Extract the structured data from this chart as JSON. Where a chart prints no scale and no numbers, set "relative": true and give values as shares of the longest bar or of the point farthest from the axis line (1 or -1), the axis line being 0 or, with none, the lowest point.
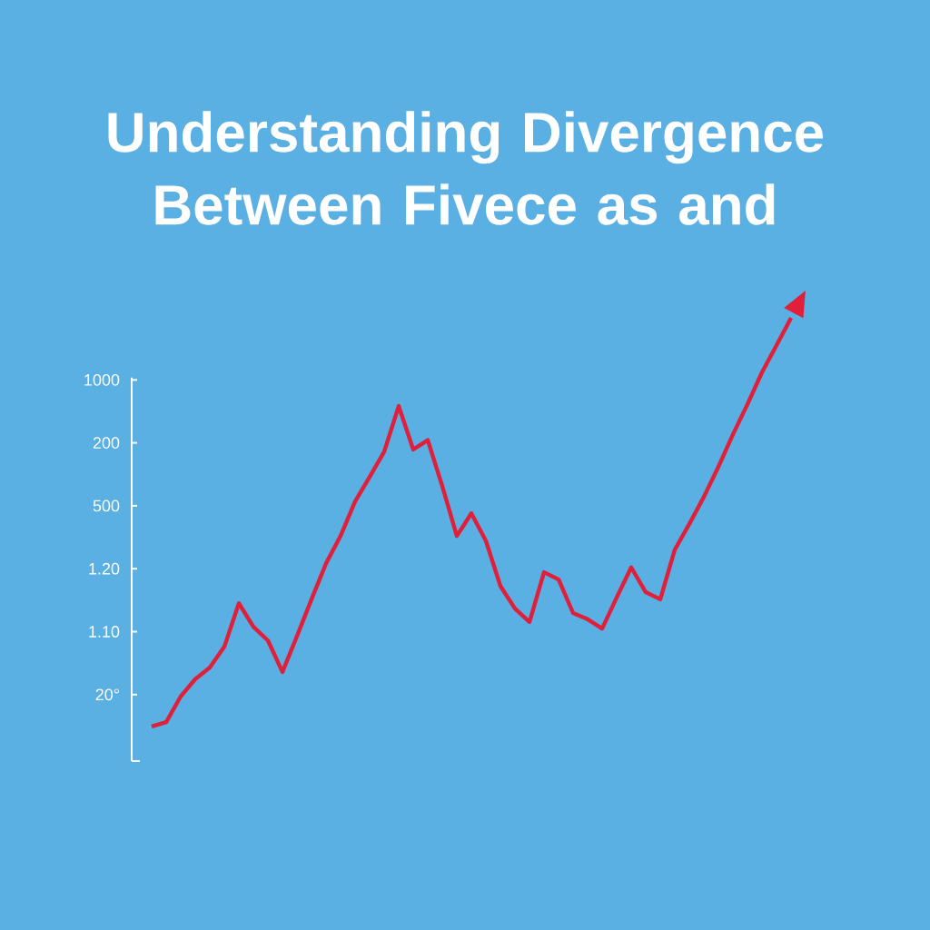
{
  "chart_data": {
    "type": "line",
    "title": "Understanding Divergence Between Fivece as and",
    "categories": [
      null,
      null,
      null,
      null,
      null,
      null,
      null,
      null,
      null,
      null,
      null,
      null,
      null,
      null,
      null,
      null,
      null,
      null,
      null,
      null,
      null,
      null,
      null,
      null,
      null,
      null,
      null,
      null,
      null,
      null,
      null,
      null,
      null,
      null,
      null,
      null,
      null,
      null,
      null,
      null,
      null,
      null,
      null,
      null,
      null
    ],
    "relative": true,
    "series": [
      {
        "color": "#e0203a",
        "values": [
          0.078,
          0.088,
          0.146,
          0.185,
          0.211,
          0.258,
          0.356,
          0.303,
          0.272,
          0.201,
          0.282,
          0.365,
          0.446,
          0.508,
          0.586,
          0.641,
          0.698,
          0.801,
          0.703,
          0.724,
          0.62,
          0.508,
          0.559,
          0.497,
          0.395,
          0.344,
          0.314,
          0.426,
          0.41,
          0.334,
          0.32,
          0.299,
          0.369,
          0.437,
          0.381,
          0.365,
          0.477,
          0.535,
          0.596,
          0.664,
          0.737,
          0.805,
          0.877,
          0.938,
          1
        ]
      }
    ],
    "annotations": [
      "1000",
      "200",
      "500",
      "1.20",
      "1.10",
      "20°"
    ]
  }
}
